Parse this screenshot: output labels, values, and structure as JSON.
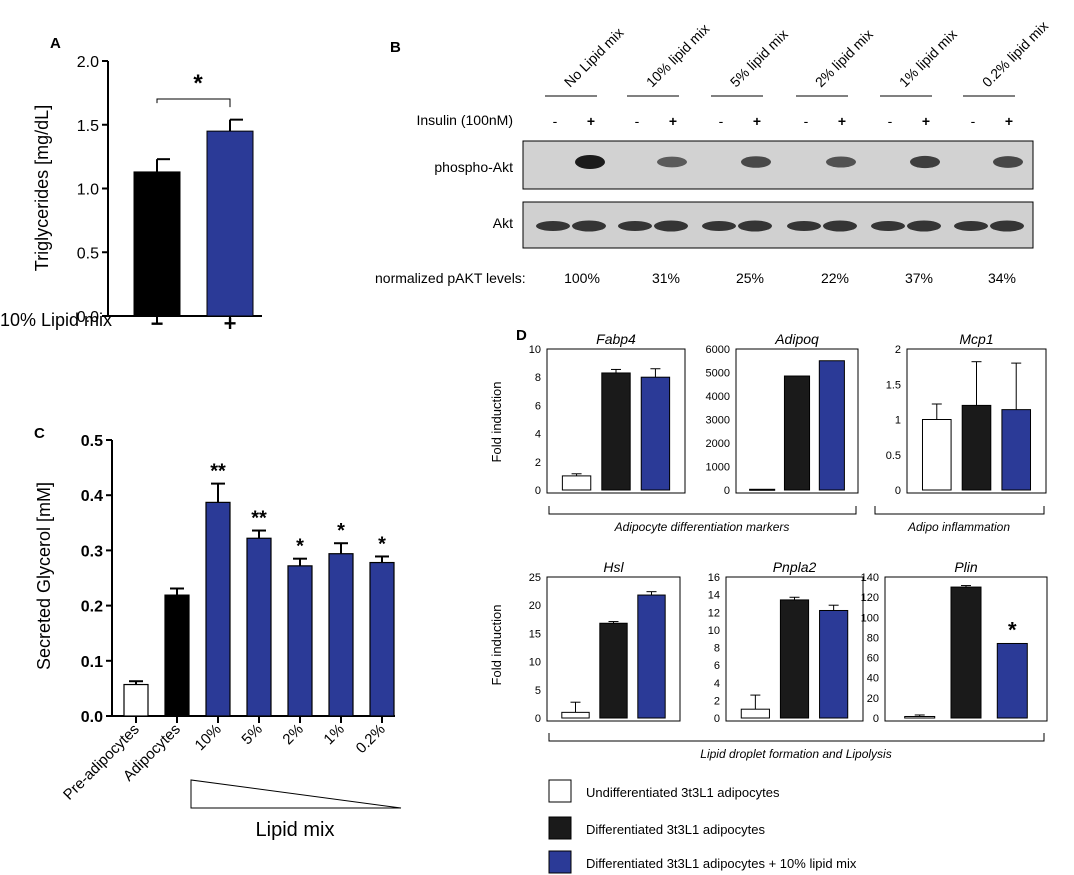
{
  "colors": {
    "black": "#000000",
    "navy": "#2b3a97",
    "white": "#ffffff",
    "blot_bg": "#d2d2d2"
  },
  "chart_data": [
    {
      "id": "A",
      "panel_label": "A",
      "type": "bar",
      "title": "",
      "ylabel": "Triglycerides [mg/dL]",
      "ylim": [
        0,
        2.0
      ],
      "yticks": [
        "0.0",
        "0.5",
        "1.0",
        "1.5",
        "2.0"
      ],
      "xlabel": "10% Lipid mix",
      "categories": [
        "−",
        "+"
      ],
      "values": [
        1.13,
        1.45
      ],
      "errors": [
        0.1,
        0.09
      ],
      "colors": [
        "#000000",
        "#2b3a97"
      ],
      "significance": "*"
    },
    {
      "id": "B",
      "panel_label": "B",
      "type": "table",
      "conditions": [
        "No Lipid mix",
        "10% lipid mix",
        "5% lipid mix",
        "2%  lipid mix",
        "1% lipid mix",
        "0.2% lipid mix"
      ],
      "insulin_label": "Insulin (100nM)",
      "insulin_signs": [
        "-",
        "+"
      ],
      "bands": [
        "phospho-Akt",
        "Akt"
      ],
      "normalized_label": "normalized pAKT levels:",
      "normalized_values": [
        "100%",
        "31%",
        "25%",
        "22%",
        "37%",
        "34%"
      ]
    },
    {
      "id": "C",
      "panel_label": "C",
      "type": "bar",
      "ylabel": "Secreted Glycerol [mM]",
      "ylim": [
        0,
        0.5
      ],
      "yticks": [
        "0.0",
        "0.1",
        "0.2",
        "0.3",
        "0.4",
        "0.5"
      ],
      "categories": [
        "Pre-adipocytes",
        "Adipocytes",
        "10%",
        "5%",
        "2%",
        "1%",
        "0.2%"
      ],
      "values": [
        0.057,
        0.219,
        0.387,
        0.322,
        0.272,
        0.294,
        0.278
      ],
      "errors": [
        0.006,
        0.012,
        0.034,
        0.014,
        0.013,
        0.019,
        0.011
      ],
      "colors": [
        "#ffffff",
        "#000000",
        "#2b3a97",
        "#2b3a97",
        "#2b3a97",
        "#2b3a97",
        "#2b3a97"
      ],
      "significance": [
        "",
        "",
        "**",
        "**",
        "*",
        "*",
        "*"
      ],
      "xlabel": "Lipid mix"
    },
    {
      "id": "D",
      "panel_label": "D",
      "type": "bar",
      "ylabel": "Fold induction",
      "series": [
        "Undifferentiated 3t3L1 adipocytes",
        "Differentiated 3t3L1 adipocytes",
        "Differentiated 3t3L1 adipocytes + 10% lipid mix"
      ],
      "series_colors": [
        "#ffffff",
        "#1a1a1a",
        "#2b3a97"
      ],
      "subplots": [
        {
          "title": "Fabp4",
          "ylim": [
            0,
            10
          ],
          "yticks": [
            "0",
            "2",
            "4",
            "6",
            "8",
            "10"
          ],
          "values": [
            1.0,
            8.3,
            8.0
          ],
          "errors": [
            0.15,
            0.25,
            0.6
          ],
          "sig": [
            "",
            "",
            ""
          ]
        },
        {
          "title": "Adipoq",
          "ylim": [
            0,
            6000
          ],
          "yticks": [
            "0",
            "1000",
            "2000",
            "3000",
            "4000",
            "5000",
            "6000"
          ],
          "values": [
            30,
            4850,
            5500
          ],
          "errors": [
            0,
            0,
            0
          ],
          "sig": [
            "",
            "",
            ""
          ]
        },
        {
          "title": "Mcp1",
          "ylim": [
            0,
            2
          ],
          "yticks": [
            "0",
            "0.5",
            "1",
            "1.5",
            "2"
          ],
          "values": [
            1.0,
            1.2,
            1.14
          ],
          "errors": [
            0.22,
            0.62,
            0.66
          ],
          "sig": [
            "",
            "",
            ""
          ]
        },
        {
          "title": "Hsl",
          "ylim": [
            0,
            25
          ],
          "yticks": [
            "0",
            "5",
            "10",
            "15",
            "20",
            "25"
          ],
          "values": [
            1.0,
            16.8,
            21.8
          ],
          "errors": [
            1.8,
            0.3,
            0.6
          ],
          "sig": [
            "",
            "",
            ""
          ]
        },
        {
          "title": "Pnpla2",
          "ylim": [
            0,
            16
          ],
          "yticks": [
            "0",
            "2",
            "4",
            "6",
            "8",
            "10",
            "12",
            "14",
            "16"
          ],
          "values": [
            1.0,
            13.4,
            12.2
          ],
          "errors": [
            1.6,
            0.3,
            0.6
          ],
          "sig": [
            "",
            "",
            ""
          ]
        },
        {
          "title": "Plin",
          "ylim": [
            0,
            140
          ],
          "yticks": [
            "0",
            "20",
            "40",
            "60",
            "80",
            "100",
            "120",
            "140"
          ],
          "values": [
            1.5,
            130,
            74
          ],
          "errors": [
            1.5,
            1.5,
            0
          ],
          "sig": [
            "",
            "",
            "*"
          ]
        }
      ],
      "groups": [
        "Adipocyte differentiation markers",
        "Adipo inflammation",
        "Lipid droplet formation and Lipolysis"
      ]
    }
  ]
}
